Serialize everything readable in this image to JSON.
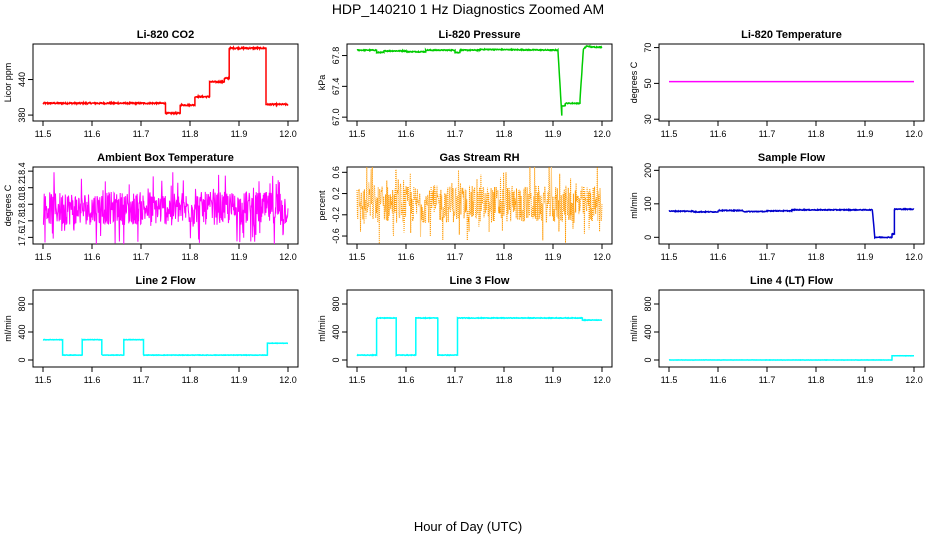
{
  "figure": {
    "title": "HDP_140210  1 Hz Diagnostics Zoomed AM",
    "xlabel": "Hour of Day (UTC)"
  },
  "chart_data": [
    {
      "type": "line",
      "title": "Li-820 CO2",
      "ylabel": "Licor ppm",
      "color": "#ff0000",
      "xlim": [
        11.5,
        12.0
      ],
      "ylim": [
        370,
        500
      ],
      "xticks": [
        "11.5",
        "11.6",
        "11.7",
        "11.8",
        "11.9",
        "12.0"
      ],
      "xtick_values": [
        11.5,
        11.6,
        11.7,
        11.8,
        11.9,
        12.0
      ],
      "yticks": [
        "380",
        "440"
      ],
      "ytick_values": [
        380,
        440
      ],
      "noise": 1.2,
      "x": [
        11.5,
        11.75,
        11.75,
        11.78,
        11.78,
        11.81,
        11.81,
        11.84,
        11.84,
        11.87,
        11.87,
        11.88,
        11.88,
        11.955,
        11.955,
        12.0
      ],
      "y": [
        400,
        400,
        383,
        383,
        397,
        397,
        411,
        411,
        436,
        436,
        442,
        442,
        493,
        493,
        398,
        398
      ]
    },
    {
      "type": "line",
      "title": "Li-820 Pressure",
      "ylabel": "kPa",
      "color": "#00cc00",
      "xlim": [
        11.5,
        12.0
      ],
      "ylim": [
        66.95,
        67.95
      ],
      "xticks": [
        "11.5",
        "11.6",
        "11.7",
        "11.8",
        "11.9",
        "12.0"
      ],
      "xtick_values": [
        11.5,
        11.6,
        11.7,
        11.8,
        11.9,
        12.0
      ],
      "yticks": [
        "67.0",
        "67.4",
        "67.8"
      ],
      "ytick_values": [
        67.0,
        67.4,
        67.8
      ],
      "noise": 0.006,
      "x": [
        11.5,
        11.54,
        11.54,
        11.555,
        11.555,
        11.6,
        11.6,
        11.64,
        11.64,
        11.7,
        11.7,
        11.71,
        11.71,
        11.75,
        11.75,
        11.91,
        11.918,
        11.918,
        11.925,
        11.925,
        11.955,
        11.955,
        11.962,
        11.968,
        11.975,
        11.975,
        12.0
      ],
      "y": [
        67.87,
        67.87,
        67.84,
        67.84,
        67.86,
        67.86,
        67.85,
        67.85,
        67.87,
        67.87,
        67.84,
        67.84,
        67.87,
        67.87,
        67.88,
        67.87,
        67.02,
        67.15,
        67.15,
        67.18,
        67.18,
        67.22,
        67.88,
        67.92,
        67.92,
        67.91,
        67.91
      ]
    },
    {
      "type": "line",
      "title": "Li-820 Temperature",
      "ylabel": "degrees C",
      "color": "#ff00ff",
      "xlim": [
        11.5,
        12.0
      ],
      "ylim": [
        29,
        72
      ],
      "xticks": [
        "11.5",
        "11.6",
        "11.7",
        "11.8",
        "11.9",
        "12.0"
      ],
      "xtick_values": [
        11.5,
        11.6,
        11.7,
        11.8,
        11.9,
        12.0
      ],
      "yticks": [
        "30",
        "50",
        "70"
      ],
      "ytick_values": [
        30,
        50,
        70
      ],
      "noise": 0,
      "x": [
        11.5,
        12.0
      ],
      "y": [
        51,
        51
      ]
    },
    {
      "type": "line",
      "title": "Ambient Box Temperature",
      "ylabel": "degrees C",
      "color": "#ff00ff",
      "xlim": [
        11.5,
        12.0
      ],
      "ylim": [
        17.52,
        18.45
      ],
      "xticks": [
        "11.5",
        "11.6",
        "11.7",
        "11.8",
        "11.9",
        "12.0"
      ],
      "xtick_values": [
        11.5,
        11.6,
        11.7,
        11.8,
        11.9,
        12.0
      ],
      "yticks": [
        "17.6",
        "17.8",
        "18.0",
        "18.2",
        "18.4"
      ],
      "ytick_values": [
        17.6,
        17.8,
        18.0,
        18.2,
        18.4
      ],
      "noise": 0.2,
      "noise_spiky": true,
      "x": [
        11.5,
        12.0
      ],
      "y": [
        17.95,
        17.95
      ]
    },
    {
      "type": "line",
      "title": "Gas Stream RH",
      "ylabel": "percent",
      "color": "#ff9900",
      "xlim": [
        11.5,
        12.0
      ],
      "ylim": [
        -0.75,
        0.7
      ],
      "xticks": [
        "11.5",
        "11.6",
        "11.7",
        "11.8",
        "11.9",
        "12.0"
      ],
      "xtick_values": [
        11.5,
        11.6,
        11.7,
        11.8,
        11.9,
        12.0
      ],
      "yticks": [
        "-0.6",
        "-0.2",
        "0.2",
        "0.6"
      ],
      "ytick_values": [
        -0.6,
        -0.2,
        0.2,
        0.6
      ],
      "noise": 0.35,
      "noise_spiky": true,
      "dotted": true,
      "x": [
        11.5,
        12.0
      ],
      "y": [
        0.0,
        0.0
      ]
    },
    {
      "type": "line",
      "title": "Sample Flow",
      "ylabel": "ml/min",
      "color": "#0000cc",
      "xlim": [
        11.5,
        12.0
      ],
      "ylim": [
        -20,
        210
      ],
      "xticks": [
        "11.5",
        "11.6",
        "11.7",
        "11.8",
        "11.9",
        "12.0"
      ],
      "xtick_values": [
        11.5,
        11.6,
        11.7,
        11.8,
        11.9,
        12.0
      ],
      "yticks": [
        "0",
        "100",
        "200"
      ],
      "ytick_values": [
        0,
        100,
        200
      ],
      "noise": 1.2,
      "x": [
        11.5,
        11.55,
        11.55,
        11.6,
        11.6,
        11.65,
        11.65,
        11.7,
        11.7,
        11.75,
        11.75,
        11.915,
        11.92,
        11.955,
        11.955,
        11.96,
        11.96,
        12.0
      ],
      "y": [
        78,
        78,
        76,
        76,
        80,
        80,
        77,
        77,
        79,
        79,
        82,
        82,
        0,
        0,
        10,
        10,
        84,
        84
      ]
    },
    {
      "type": "line",
      "title": "Line 2 Flow",
      "ylabel": "ml/min",
      "color": "#00ffff",
      "xlim": [
        11.5,
        12.0
      ],
      "ylim": [
        -100,
        1000
      ],
      "xticks": [
        "11.5",
        "11.6",
        "11.7",
        "11.8",
        "11.9",
        "12.0"
      ],
      "xtick_values": [
        11.5,
        11.6,
        11.7,
        11.8,
        11.9,
        12.0
      ],
      "yticks": [
        "0",
        "400",
        "800"
      ],
      "ytick_values": [
        0,
        400,
        800
      ],
      "noise": 3,
      "x": [
        11.5,
        11.54,
        11.54,
        11.58,
        11.58,
        11.62,
        11.62,
        11.665,
        11.665,
        11.705,
        11.705,
        11.958,
        11.958,
        12.0
      ],
      "y": [
        290,
        290,
        70,
        70,
        290,
        290,
        70,
        70,
        290,
        290,
        70,
        70,
        240,
        240
      ]
    },
    {
      "type": "line",
      "title": "Line 3 Flow",
      "ylabel": "ml/min",
      "color": "#00ffff",
      "xlim": [
        11.5,
        12.0
      ],
      "ylim": [
        -100,
        1000
      ],
      "xticks": [
        "11.5",
        "11.6",
        "11.7",
        "11.8",
        "11.9",
        "12.0"
      ],
      "xtick_values": [
        11.5,
        11.6,
        11.7,
        11.8,
        11.9,
        12.0
      ],
      "yticks": [
        "0",
        "400",
        "800"
      ],
      "ytick_values": [
        0,
        400,
        800
      ],
      "noise": 4,
      "x": [
        11.5,
        11.54,
        11.54,
        11.58,
        11.58,
        11.62,
        11.62,
        11.665,
        11.665,
        11.705,
        11.705,
        11.96,
        11.96,
        12.0
      ],
      "y": [
        70,
        70,
        600,
        600,
        70,
        70,
        600,
        600,
        70,
        70,
        600,
        600,
        570,
        570
      ]
    },
    {
      "type": "line",
      "title": "Line 4 (LT) Flow",
      "ylabel": "ml/min",
      "color": "#00ffff",
      "xlim": [
        11.5,
        12.0
      ],
      "ylim": [
        -100,
        1000
      ],
      "xticks": [
        "11.5",
        "11.6",
        "11.7",
        "11.8",
        "11.9",
        "12.0"
      ],
      "xtick_values": [
        11.5,
        11.6,
        11.7,
        11.8,
        11.9,
        12.0
      ],
      "yticks": [
        "0",
        "400",
        "800"
      ],
      "ytick_values": [
        0,
        400,
        800
      ],
      "noise": 1,
      "x": [
        11.5,
        11.955,
        11.955,
        12.0
      ],
      "y": [
        0,
        0,
        60,
        60
      ]
    }
  ]
}
